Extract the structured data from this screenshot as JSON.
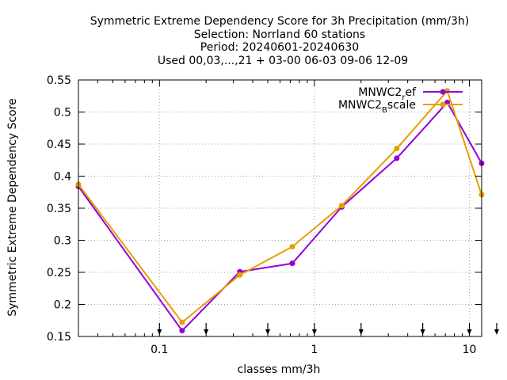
{
  "chart_data": {
    "type": "line",
    "title": [
      "Symmetric Extreme Dependency Score  for 3h Precipitation (mm/3h)",
      "Selection: Norrland     60 stations",
      "Period: 20240601-20240630",
      "Used 00,03,...,21 + 03-00 06-03 09-06 12-09"
    ],
    "xlabel": "classes mm/3h",
    "ylabel": "Symmetric Extreme Dependency Score",
    "x_scale": "log",
    "xlim": [
      0.03,
      12
    ],
    "ylim": [
      0.15,
      0.55
    ],
    "grid": true,
    "legend_position": "top-right",
    "x_ticks": [
      {
        "value": 0.1,
        "label": "0.1"
      },
      {
        "value": 1,
        "label": "1"
      },
      {
        "value": 10,
        "label": "10"
      }
    ],
    "y_ticks": [
      {
        "value": 0.15,
        "label": "0.15"
      },
      {
        "value": 0.2,
        "label": "0.2"
      },
      {
        "value": 0.25,
        "label": "0.25"
      },
      {
        "value": 0.3,
        "label": "0.3"
      },
      {
        "value": 0.35,
        "label": "0.35"
      },
      {
        "value": 0.4,
        "label": "0.4"
      },
      {
        "value": 0.45,
        "label": "0.45"
      },
      {
        "value": 0.5,
        "label": "0.5"
      },
      {
        "value": 0.55,
        "label": "0.55"
      }
    ],
    "class_markers": [
      0.1,
      0.2,
      0.5,
      1,
      2,
      5,
      10,
      15
    ],
    "series": [
      {
        "name": "MNWC2_ref",
        "legend_main": "MNWC2",
        "legend_sub": "r",
        "legend_rest": "ef",
        "color": "#9400d3",
        "x": [
          0.03,
          0.14,
          0.33,
          0.72,
          1.5,
          3.4,
          7.2,
          12
        ],
        "y": [
          0.384,
          0.159,
          0.251,
          0.264,
          0.352,
          0.428,
          0.515,
          0.42
        ]
      },
      {
        "name": "MNWC2_Bscale",
        "legend_main": "MNWC2",
        "legend_sub": "B",
        "legend_rest": "scale",
        "color": "#e69f00",
        "x": [
          0.03,
          0.14,
          0.33,
          0.72,
          1.5,
          3.4,
          7.2,
          12
        ],
        "y": [
          0.387,
          0.172,
          0.246,
          0.29,
          0.354,
          0.443,
          0.533,
          0.371
        ]
      }
    ]
  }
}
